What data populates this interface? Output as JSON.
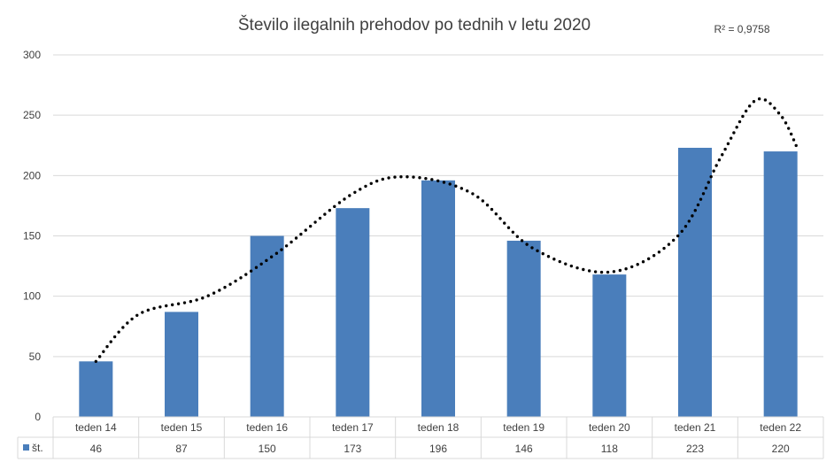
{
  "chart_data": {
    "type": "bar",
    "title": "Število ilegalnih prehodov po tednih v letu 2020",
    "categories": [
      "teden 14",
      "teden 15",
      "teden 16",
      "teden 17",
      "teden 18",
      "teden 19",
      "teden 20",
      "teden 21",
      "teden 22"
    ],
    "series": [
      {
        "name": "št.",
        "values": [
          46,
          87,
          150,
          173,
          196,
          146,
          118,
          223,
          220
        ],
        "color": "#4a7ebb"
      }
    ],
    "trendline": {
      "type": "polynomial",
      "style": "dotted",
      "color": "#000000",
      "r_squared_label": "R² = 0,9758"
    },
    "ylim": [
      0,
      300
    ],
    "yticks": [
      0,
      50,
      100,
      150,
      200,
      250,
      300
    ],
    "grid": true,
    "data_table": true
  }
}
